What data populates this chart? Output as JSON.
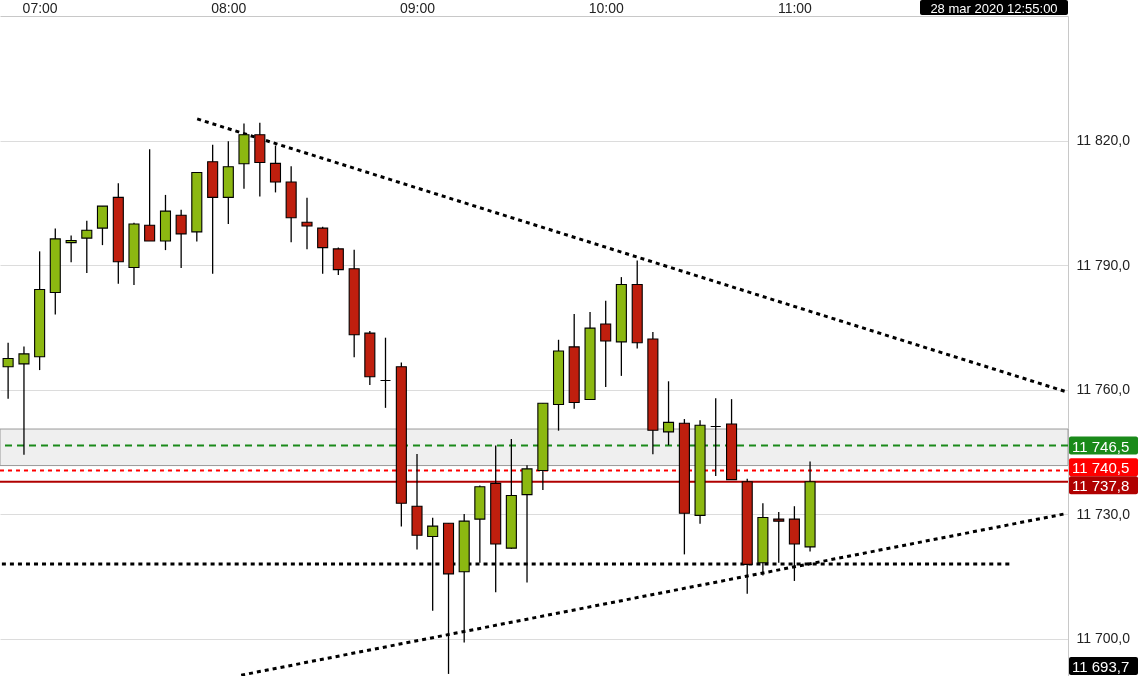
{
  "chart_data": {
    "type": "candlestick",
    "x": [
      6.833,
      6.917,
      7.0,
      7.083,
      7.167,
      7.25,
      7.333,
      7.417,
      7.5,
      7.583,
      7.667,
      7.75,
      7.833,
      7.917,
      8.0,
      8.083,
      8.167,
      8.25,
      8.333,
      8.417,
      8.5,
      8.583,
      8.667,
      8.75,
      8.833,
      8.917,
      9.0,
      9.083,
      9.167,
      9.25,
      9.333,
      9.417,
      9.5,
      9.583,
      9.667,
      9.75,
      9.833,
      9.917,
      10.0,
      10.083,
      10.167,
      10.25,
      10.333,
      10.417,
      10.5,
      10.583,
      10.667,
      10.75,
      10.833,
      10.917,
      11.0,
      11.083
    ],
    "ohlc": [
      [
        11765.5,
        11771.3,
        11757.8,
        11767.5
      ],
      [
        11766.2,
        11770.4,
        11744.3,
        11768.6
      ],
      [
        11767.9,
        11793.3,
        11764.7,
        11784.1
      ],
      [
        11783.4,
        11798.8,
        11778.1,
        11796.3
      ],
      [
        11795.4,
        11797.1,
        11790.7,
        11795.9
      ],
      [
        11796.5,
        11800.7,
        11788.1,
        11798.4
      ],
      [
        11798.9,
        11804.2,
        11794.8,
        11804.2
      ],
      [
        11806.3,
        11809.7,
        11785.5,
        11790.8
      ],
      [
        11789.4,
        11800.2,
        11785.2,
        11799.9
      ],
      [
        11799.6,
        11817.9,
        11795.8,
        11795.8
      ],
      [
        11795.8,
        11806.9,
        11793.6,
        11803.0
      ],
      [
        11802.0,
        11803.3,
        11789.3,
        11797.5
      ],
      [
        11798.0,
        11812.3,
        11795.7,
        11812.3
      ],
      [
        11814.9,
        11819.0,
        11787.9,
        11806.3
      ],
      [
        11806.3,
        11819.8,
        11799.9,
        11813.7
      ],
      [
        11814.4,
        11824.1,
        11808.4,
        11821.4
      ],
      [
        11821.4,
        11824.3,
        11806.5,
        11814.7
      ],
      [
        11814.5,
        11818.8,
        11807.5,
        11810.0
      ],
      [
        11810.0,
        11813.8,
        11795.5,
        11801.4
      ],
      [
        11800.3,
        11806.2,
        11793.8,
        11799.4
      ],
      [
        11798.9,
        11799.2,
        11787.9,
        11794.2
      ],
      [
        11793.9,
        11794.2,
        11787.6,
        11788.9
      ],
      [
        11789.1,
        11793.7,
        11767.8,
        11773.2
      ],
      [
        11773.6,
        11774.1,
        11761.1,
        11763.1
      ],
      [
        11762.2,
        11772.5,
        11755.6,
        11762.2
      ],
      [
        11765.5,
        11766.5,
        11727.0,
        11732.6
      ],
      [
        11731.9,
        11744.5,
        11721.5,
        11724.9
      ],
      [
        11724.6,
        11729.1,
        11706.7,
        11727.1
      ],
      [
        11727.8,
        11727.8,
        11691.5,
        11715.6
      ],
      [
        11716.1,
        11730.0,
        11699.1,
        11728.3
      ],
      [
        11728.8,
        11736.9,
        11718.3,
        11736.6
      ],
      [
        11737.4,
        11746.5,
        11711.2,
        11722.8
      ],
      [
        11721.8,
        11748.1,
        11721.6,
        11734.5
      ],
      [
        11734.7,
        11741.8,
        11713.5,
        11740.9
      ],
      [
        11740.5,
        11756.7,
        11735.8,
        11756.7
      ],
      [
        11756.4,
        11772.0,
        11750.1,
        11769.3
      ],
      [
        11770.3,
        11778.2,
        11755.4,
        11756.9
      ],
      [
        11757.6,
        11778.7,
        11757.6,
        11774.8
      ],
      [
        11775.8,
        11781.4,
        11760.6,
        11771.7
      ],
      [
        11771.5,
        11787.1,
        11763.3,
        11785.3
      ],
      [
        11785.3,
        11791.1,
        11769.9,
        11771.3
      ],
      [
        11772.2,
        11773.9,
        11744.4,
        11750.2
      ],
      [
        11749.8,
        11762.0,
        11746.6,
        11752.1
      ],
      [
        11751.9,
        11752.9,
        11720.3,
        11730.2
      ],
      [
        11729.7,
        11752.6,
        11727.7,
        11751.4
      ],
      [
        11751.1,
        11757.9,
        11739.2,
        11751.1
      ],
      [
        11751.7,
        11757.7,
        11738.3,
        11738.3
      ],
      [
        11737.8,
        11738.5,
        11710.8,
        11717.9
      ],
      [
        11718.3,
        11732.6,
        11715.2,
        11729.2
      ],
      [
        11728.8,
        11730.5,
        11718.3,
        11728.3
      ],
      [
        11728.8,
        11731.9,
        11713.9,
        11722.8
      ],
      [
        11722.1,
        11742.7,
        11721.0,
        11737.8
      ]
    ],
    "colors": [
      "#8cb811",
      "#8cb811",
      "#8cb811",
      "#8cb811",
      "#8cb811",
      "#8cb811",
      "#8cb811",
      "#bf1f0e",
      "#8cb811",
      "#bf1f0e",
      "#8cb811",
      "#bf1f0e",
      "#8cb811",
      "#bf1f0e",
      "#8cb811",
      "#8cb811",
      "#bf1f0e",
      "#bf1f0e",
      "#bf1f0e",
      "#bf1f0e",
      "#bf1f0e",
      "#bf1f0e",
      "#bf1f0e",
      "#bf1f0e",
      "#000000",
      "#bf1f0e",
      "#bf1f0e",
      "#8cb811",
      "#bf1f0e",
      "#8cb811",
      "#8cb811",
      "#bf1f0e",
      "#8cb811",
      "#8cb811",
      "#8cb811",
      "#8cb811",
      "#bf1f0e",
      "#8cb811",
      "#bf1f0e",
      "#8cb811",
      "#bf1f0e",
      "#bf1f0e",
      "#8cb811",
      "#bf1f0e",
      "#8cb811",
      "#000000",
      "#bf1f0e",
      "#bf1f0e",
      "#8cb811",
      "#bf1f0e",
      "#bf1f0e",
      "#8cb811"
    ],
    "series": [
      {
        "type": "line",
        "x": [
          7.835,
          12.432
        ],
        "values": [
          11825.2,
          11759.6
        ],
        "color": "#000000",
        "line_style": "dotted"
      },
      {
        "type": "line",
        "x": [
          8.068,
          12.426
        ],
        "values": [
          11691.2,
          11730.0
        ],
        "color": "#000000",
        "line_style": "dotted"
      },
      {
        "type": "line",
        "x": [
          6.8,
          12.139
        ],
        "values": [
          11718.0,
          11718.0
        ],
        "color": "#000000",
        "line_style": "dotted"
      }
    ],
    "xlim": [
      6.79,
      12.45
    ],
    "xticks": [
      {
        "value": 7,
        "label": "07:00"
      },
      {
        "value": 8,
        "label": "08:00"
      },
      {
        "value": 9,
        "label": "09:00"
      },
      {
        "value": 10,
        "label": "10:00"
      },
      {
        "value": 11,
        "label": "11:00"
      }
    ],
    "ylim": [
      11691,
      11850
    ],
    "yticks": [
      {
        "value": 11700,
        "label": "11 700,0"
      },
      {
        "value": 11730,
        "label": "11 730,0"
      },
      {
        "value": 11760,
        "label": "11 760,0"
      },
      {
        "value": 11790,
        "label": "11 790,0"
      },
      {
        "value": 11820,
        "label": "11 820,0"
      }
    ],
    "grid": "y",
    "bands": [
      {
        "axis": "y",
        "from": 11741.7,
        "to": 11750.5,
        "color": "#efefef"
      }
    ],
    "ref_lines": [
      {
        "axis": "y",
        "value": 11746.5,
        "label": "11 746,5",
        "color": "#1a8a1a",
        "line_style": "dashed"
      },
      {
        "axis": "y",
        "value": 11740.5,
        "label": "11 740,5",
        "color": "#ff0000",
        "line_style": "dotted"
      },
      {
        "axis": "y",
        "value": 11737.8,
        "label": "11 737,8",
        "color": "#b00000",
        "line_style": "solid"
      }
    ],
    "annotations": [
      "28 mar 2020 12:55:00",
      "11 693,7"
    ]
  }
}
